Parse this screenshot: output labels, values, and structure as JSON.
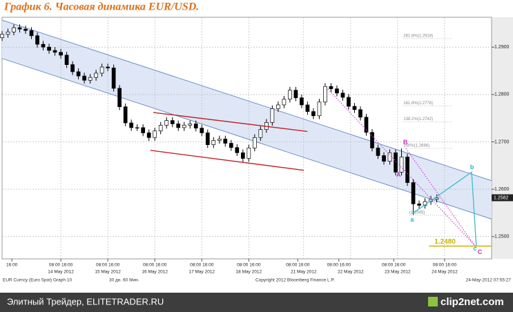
{
  "chart_data": {
    "type": "candlestick",
    "title": "График 6.   Часовая динамика EUR/USD.",
    "xlim": [
      0,
      250
    ],
    "ylim": [
      1.2453,
      1.2963
    ],
    "yticks": [
      {
        "value": 1.29,
        "label": "1.2900"
      },
      {
        "value": 1.28,
        "label": "1.2800"
      },
      {
        "value": 1.27,
        "label": "1.2700"
      },
      {
        "value": 1.26,
        "label": "1.2600"
      },
      {
        "value": 1.25,
        "label": "1.2500"
      }
    ],
    "xticks": [
      {
        "value": 30,
        "label": "14 May 2012"
      },
      {
        "value": 54,
        "label": "15 May 2012"
      },
      {
        "value": 78,
        "label": "16 May 2012"
      },
      {
        "value": 102,
        "label": "17 May 2012"
      },
      {
        "value": 126,
        "label": "18 May 2012"
      },
      {
        "value": 154,
        "label": "21 May 2012"
      },
      {
        "value": 178,
        "label": "22 May 2012"
      },
      {
        "value": 202,
        "label": "23 May 2012"
      },
      {
        "value": 226,
        "label": "24 May 2012"
      }
    ],
    "time_ticks": [
      {
        "value": 5,
        "label": "16:00"
      },
      {
        "value": 30,
        "label": "08:00  16:00"
      },
      {
        "value": 54,
        "label": "08:00  16:00"
      },
      {
        "value": 78,
        "label": "08:00  16:00"
      },
      {
        "value": 102,
        "label": "08:00  16:00"
      },
      {
        "value": 126,
        "label": "08:00  16:00"
      },
      {
        "value": 151,
        "label": "08:00  16:00"
      },
      {
        "value": 172,
        "label": "08:00  16:00"
      },
      {
        "value": 200,
        "label": "08:00  16:00"
      },
      {
        "value": 226,
        "label": "08:00  16:00"
      }
    ],
    "grid": true,
    "up_color": "#ffffff",
    "down_color": "#000000",
    "x": [
      0,
      3,
      6,
      9,
      12,
      15,
      18,
      21,
      24,
      27,
      30,
      33,
      36,
      39,
      42,
      45,
      48,
      51,
      54,
      57,
      60,
      63,
      66,
      69,
      72,
      75,
      78,
      81,
      84,
      87,
      90,
      93,
      96,
      99,
      102,
      105,
      108,
      111,
      114,
      117,
      120,
      123,
      126,
      129,
      132,
      135,
      138,
      141,
      144,
      147,
      150,
      153,
      156,
      159,
      162,
      165,
      168,
      171,
      174,
      177,
      180,
      183,
      186,
      189,
      192,
      195,
      198,
      201,
      204,
      207,
      210,
      213,
      216,
      219,
      222
    ],
    "open": [
      1.292,
      1.2927,
      1.2932,
      1.2941,
      1.2938,
      1.2935,
      1.2924,
      1.2906,
      1.29,
      1.2893,
      1.2889,
      1.2883,
      1.2863,
      1.2848,
      1.2839,
      1.283,
      1.2836,
      1.2845,
      1.2858,
      1.2856,
      1.2813,
      1.2774,
      1.274,
      1.273,
      1.273,
      1.2719,
      1.2709,
      1.2723,
      1.2735,
      1.2745,
      1.2738,
      1.273,
      1.2735,
      1.2738,
      1.2729,
      1.2719,
      1.2694,
      1.2703,
      1.2706,
      1.2697,
      1.2688,
      1.2677,
      1.2665,
      1.2687,
      1.2709,
      1.2726,
      1.2741,
      1.277,
      1.2778,
      1.279,
      1.2809,
      1.2793,
      1.2778,
      1.2764,
      1.2755,
      1.2784,
      1.2817,
      1.2812,
      1.2803,
      1.2794,
      1.2775,
      1.2768,
      1.2752,
      1.272,
      1.2687,
      1.2671,
      1.2659,
      1.2677,
      1.2636,
      1.2668,
      1.2614,
      1.2569,
      1.2566,
      1.2574,
      1.2579
    ],
    "high": [
      1.2934,
      1.2939,
      1.2948,
      1.2948,
      1.2945,
      1.2942,
      1.2931,
      1.2913,
      1.2907,
      1.29,
      1.2896,
      1.289,
      1.287,
      1.2855,
      1.2846,
      1.2843,
      1.2852,
      1.2865,
      1.2865,
      1.2863,
      1.282,
      1.2781,
      1.2747,
      1.2737,
      1.2737,
      1.2726,
      1.273,
      1.2742,
      1.2752,
      1.2752,
      1.2745,
      1.2742,
      1.2745,
      1.2745,
      1.2736,
      1.2726,
      1.271,
      1.2713,
      1.2713,
      1.2704,
      1.2695,
      1.2684,
      1.2694,
      1.2716,
      1.2733,
      1.2748,
      1.2777,
      1.2785,
      1.2797,
      1.2816,
      1.2816,
      1.28,
      1.2785,
      1.2771,
      1.2791,
      1.2824,
      1.2824,
      1.2819,
      1.281,
      1.2801,
      1.2782,
      1.2775,
      1.2759,
      1.2727,
      1.2694,
      1.2678,
      1.2684,
      1.2684,
      1.2686,
      1.2675,
      1.2621,
      1.2576,
      1.2581,
      1.2586,
      1.2589
    ],
    "low": [
      1.2913,
      1.292,
      1.2925,
      1.2931,
      1.2928,
      1.2917,
      1.2899,
      1.2893,
      1.2886,
      1.2882,
      1.2876,
      1.2856,
      1.2841,
      1.2832,
      1.2823,
      1.2823,
      1.2829,
      1.2838,
      1.2849,
      1.2806,
      1.2767,
      1.2733,
      1.2723,
      1.2723,
      1.2712,
      1.2702,
      1.2702,
      1.2716,
      1.2728,
      1.2731,
      1.2723,
      1.2723,
      1.2728,
      1.2722,
      1.2712,
      1.2687,
      1.2687,
      1.2696,
      1.269,
      1.2681,
      1.267,
      1.2658,
      1.2658,
      1.268,
      1.2702,
      1.2719,
      1.2734,
      1.2763,
      1.2771,
      1.2783,
      1.2786,
      1.2771,
      1.2757,
      1.2748,
      1.2748,
      1.2777,
      1.2805,
      1.2796,
      1.2787,
      1.2768,
      1.2761,
      1.2745,
      1.2713,
      1.268,
      1.2664,
      1.2652,
      1.2652,
      1.2629,
      1.2629,
      1.2607,
      1.2546,
      1.2559,
      1.2559,
      1.2567,
      1.2572
    ],
    "close": [
      1.2927,
      1.2932,
      1.2941,
      1.2938,
      1.2935,
      1.2924,
      1.2906,
      1.29,
      1.2893,
      1.2889,
      1.2883,
      1.2863,
      1.2848,
      1.2839,
      1.283,
      1.2836,
      1.2845,
      1.2858,
      1.2856,
      1.2813,
      1.2774,
      1.274,
      1.273,
      1.273,
      1.2719,
      1.2709,
      1.2723,
      1.2735,
      1.2745,
      1.2738,
      1.273,
      1.2735,
      1.2738,
      1.2729,
      1.2719,
      1.2694,
      1.2703,
      1.2706,
      1.2697,
      1.2688,
      1.2677,
      1.2665,
      1.2687,
      1.2709,
      1.2726,
      1.2741,
      1.277,
      1.2778,
      1.279,
      1.2809,
      1.2793,
      1.2778,
      1.2764,
      1.2755,
      1.2784,
      1.2817,
      1.2812,
      1.2803,
      1.2794,
      1.2775,
      1.2768,
      1.2752,
      1.272,
      1.2687,
      1.2671,
      1.2659,
      1.2677,
      1.2636,
      1.2668,
      1.2614,
      1.2569,
      1.2566,
      1.2574,
      1.2579,
      1.2582
    ],
    "last_price": 1.2582,
    "channel": {
      "color": "#6f8fc8",
      "fill": "#dfe7f6",
      "upper": {
        "x": [
          0,
          250
        ],
        "y": [
          1.2957,
          1.2618
        ]
      },
      "lower": {
        "x": [
          0,
          250
        ],
        "y": [
          1.2876,
          1.2537
        ]
      }
    },
    "trend_lines": [
      {
        "color": "#c0262b",
        "x": [
          77.2,
          155.9
        ],
        "y": [
          1.2762,
          1.2722
        ],
        "dash": false
      },
      {
        "color": "#c0262b",
        "x": [
          75.8,
          154.1
        ],
        "y": [
          1.2682,
          1.264
        ],
        "dash": false
      },
      {
        "color": "#d040d0",
        "x": [
          164.7,
          242.2
        ],
        "y": [
          1.2819,
          1.2478
        ],
        "dash": true
      },
      {
        "color": "#d040d0",
        "x": [
          206.3,
          242.2
        ],
        "y": [
          1.2686,
          1.2476
        ],
        "dash": true
      },
      {
        "color": "#40c0d0",
        "x": [
          209.4,
          239.8,
          242.2
        ],
        "y": [
          1.2548,
          1.2636,
          1.2479
        ],
        "dash": false
      }
    ],
    "fib_levels": [
      {
        "label": "261.8%(1.2918)",
        "value": 1.2918,
        "x": 205
      },
      {
        "label": "161.8%(1.2776)",
        "value": 1.2776,
        "x": 205
      },
      {
        "label": "138.2%(1.2742)",
        "value": 1.2742,
        "x": 205
      },
      {
        "label": "100%(1.2686)",
        "value": 1.2686,
        "x": 205
      },
      {
        "label": "(1.2545)",
        "value": 1.2545,
        "x": 208
      }
    ],
    "target": {
      "label": "1.2480",
      "value": 1.248,
      "x": [
        218,
        250
      ],
      "color": "#c8b400"
    },
    "wave_labels": [
      {
        "text": "A",
        "x": 202.5,
        "y": 1.263,
        "color": "#c030c0"
      },
      {
        "text": "B",
        "x": 206,
        "y": 1.2698,
        "color": "#c030c0"
      },
      {
        "text": "C",
        "x": 244,
        "y": 1.2467,
        "color": "#c030c0"
      },
      {
        "text": "a",
        "x": 209.4,
        "y": 1.2535,
        "color": "#30b0c0"
      },
      {
        "text": "b",
        "x": 240,
        "y": 1.2646,
        "color": "#30b0c0"
      },
      {
        "text": "c",
        "x": 241.5,
        "y": 1.2474,
        "color": "#30b0c0"
      }
    ],
    "footer": {
      "left": "EUR Curncy (Euro Spot) Graph 10",
      "period": "30 дн. 60 Мин.",
      "copyright": "Copyright 2012 Bloomberg Finance L.P.",
      "timestamp": "24-May-2012 07:55:27"
    },
    "banner": {
      "source": "Элитный Трейдер, ELITETRADER.RU",
      "logo": "clip2net.com"
    }
  }
}
